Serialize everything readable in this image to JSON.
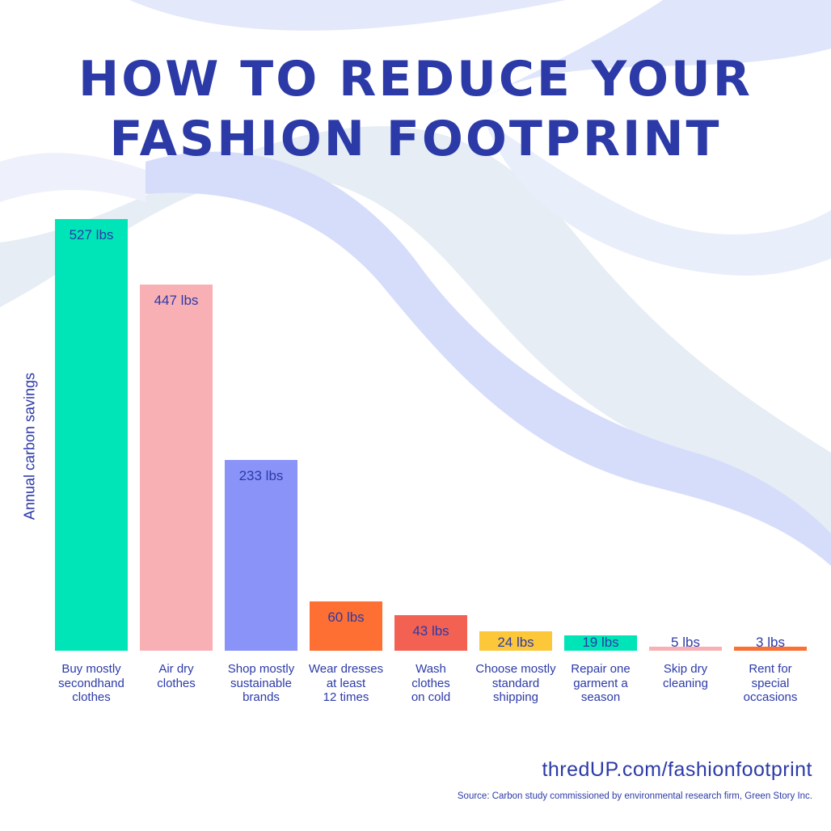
{
  "title_lines": [
    "HOW TO REDUCE YOUR",
    "FASHION FOOTPRINT"
  ],
  "footer": {
    "url": "thredUP.com/fashionfootprint",
    "source": "Source: Carbon study commissioned by environmental research firm, Green Story Inc."
  },
  "chart_data": {
    "type": "bar",
    "ylabel": "Annual carbon savings",
    "unit": "lbs",
    "categories": [
      "Buy mostly\nsecondhand\nclothes",
      "Air dry\nclothes",
      "Shop mostly\nsustainable\nbrands",
      "Wear dresses\nat least\n12 times",
      "Wash\nclothes\non cold",
      "Choose mostly\nstandard\nshipping",
      "Repair one\ngarment a\nseason",
      "Skip dry\ncleaning",
      "Rent for\nspecial\noccasions"
    ],
    "values": [
      527,
      447,
      233,
      60,
      43,
      24,
      19,
      5,
      3
    ],
    "data_labels": [
      "527 lbs",
      "447 lbs",
      "233 lbs",
      "60 lbs",
      "43 lbs",
      "24 lbs",
      "19 lbs",
      "5 lbs",
      "3 lbs"
    ],
    "colors": [
      "#00e5b8",
      "#f9b0b5",
      "#8a93f8",
      "#fd6f33",
      "#f26152",
      "#fdc73a",
      "#00e5b8",
      "#f9b0b5",
      "#fd6f33"
    ],
    "text_color": "#2c3aa8",
    "ylim": [
      0,
      527
    ],
    "grid": false,
    "legend": "none"
  }
}
